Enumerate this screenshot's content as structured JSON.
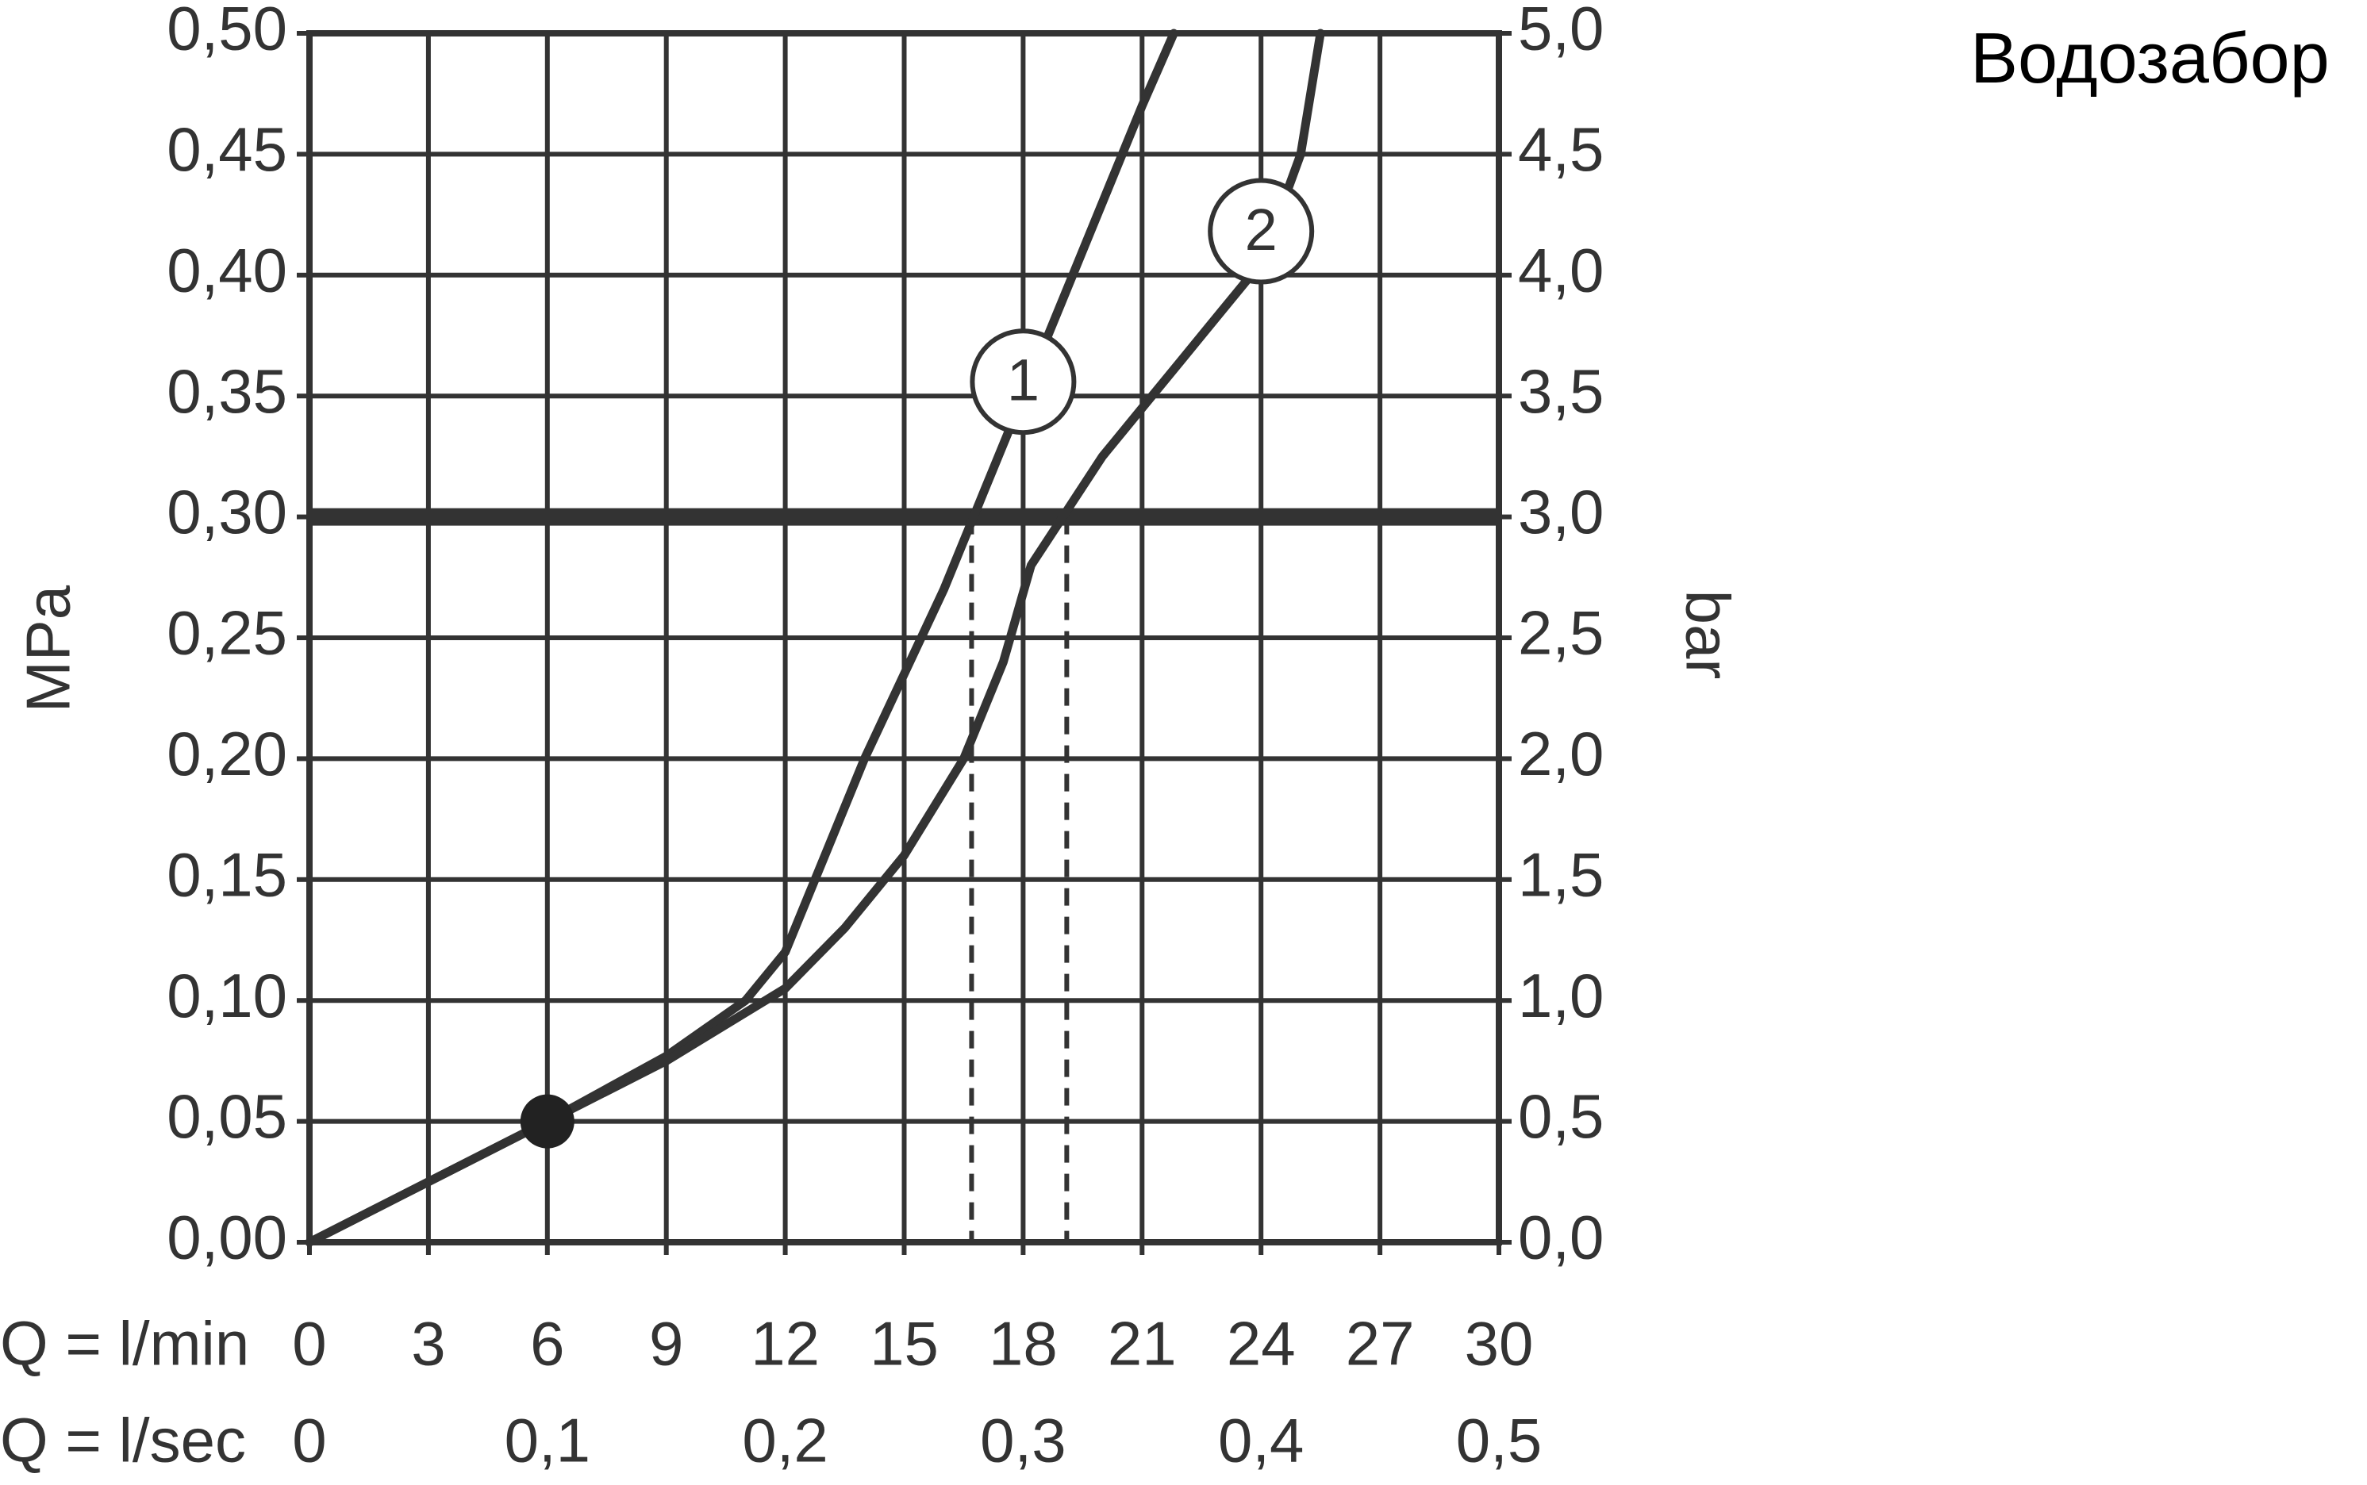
{
  "chart_data": {
    "type": "line",
    "title": "Водозабор",
    "y_label": "MPa",
    "y2_label": "bar",
    "x_label": "Q = l/min",
    "x2_label": "Q = l/sec",
    "xlim": [
      0,
      30
    ],
    "xticks": [
      0,
      3,
      6,
      9,
      12,
      15,
      18,
      21,
      24,
      27,
      30
    ],
    "x2lim": [
      0,
      0.5
    ],
    "x2ticks": [
      0,
      {
        "value": 0.1,
        "label": "0,1"
      },
      {
        "value": 0.2,
        "label": "0,2"
      },
      {
        "value": 0.3,
        "label": "0,3"
      },
      {
        "value": 0.4,
        "label": "0,4"
      },
      {
        "value": 0.5,
        "label": "0,5"
      }
    ],
    "ylim": [
      0,
      0.5
    ],
    "yticks": [
      {
        "value": 0,
        "label": "0,00"
      },
      {
        "value": 0.05,
        "label": "0,05"
      },
      {
        "value": 0.1,
        "label": "0,10"
      },
      {
        "value": 0.15,
        "label": "0,15"
      },
      {
        "value": 0.2,
        "label": "0,20"
      },
      {
        "value": 0.25,
        "label": "0,25"
      },
      {
        "value": 0.3,
        "label": "0,30"
      },
      {
        "value": 0.35,
        "label": "0,35"
      },
      {
        "value": 0.4,
        "label": "0,40"
      },
      {
        "value": 0.45,
        "label": "0,45"
      },
      {
        "value": 0.5,
        "label": "0,50"
      }
    ],
    "y2lim": [
      0,
      5
    ],
    "y2ticks": [
      {
        "value": 0,
        "label": "0,0"
      },
      {
        "value": 0.5,
        "label": "0,5"
      },
      {
        "value": 1,
        "label": "1,0"
      },
      {
        "value": 1.5,
        "label": "1,5"
      },
      {
        "value": 2,
        "label": "2,0"
      },
      {
        "value": 2.5,
        "label": "2,5"
      },
      {
        "value": 3,
        "label": "3,0"
      },
      {
        "value": 3.5,
        "label": "3,5"
      },
      {
        "value": 4,
        "label": "4,0"
      },
      {
        "value": 4.5,
        "label": "4,5"
      },
      {
        "value": 5,
        "label": "5,0"
      }
    ],
    "grid": true,
    "reference_y": 0.3,
    "dashed_x": [
      16.7,
      19.1
    ],
    "marker": {
      "x": 6,
      "y": 0.05
    },
    "series": [
      {
        "name": "1",
        "color": "#333333",
        "x": [
          0,
          3,
          6,
          9,
          11,
          12,
          13,
          14,
          15,
          16,
          17,
          18,
          19,
          20,
          21,
          21.8
        ],
        "values": [
          0,
          0.025,
          0.05,
          0.077,
          0.1,
          0.12,
          0.16,
          0.2,
          0.235,
          0.27,
          0.31,
          0.35,
          0.39,
          0.43,
          0.47,
          0.5
        ]
      },
      {
        "name": "2",
        "color": "#333333",
        "x": [
          0,
          6,
          9,
          12,
          13.5,
          15,
          16.5,
          17.5,
          18.2,
          19,
          20,
          21,
          22,
          23,
          24,
          25,
          25.5
        ],
        "values": [
          0,
          0.05,
          0.075,
          0.105,
          0.13,
          0.16,
          0.2,
          0.24,
          0.28,
          0.3,
          0.325,
          0.345,
          0.365,
          0.385,
          0.405,
          0.45,
          0.5
        ]
      }
    ]
  }
}
